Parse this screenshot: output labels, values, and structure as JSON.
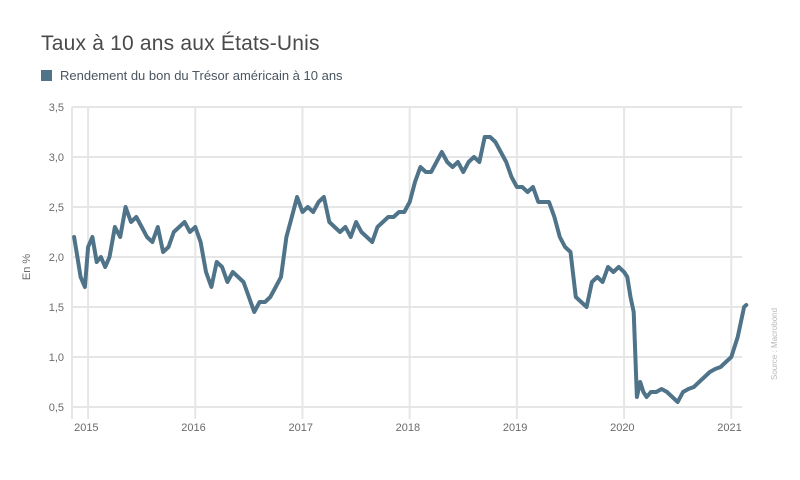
{
  "chart_data": {
    "type": "line",
    "title": "Taux à 10 ans aux États-Unis",
    "ylabel": "En %",
    "xlabel": "",
    "source": "Source : Macrobond",
    "ylim": [
      0.5,
      3.5
    ],
    "xlim": [
      2014.85,
      2021.1
    ],
    "yticks": [
      "0,5",
      "1,0",
      "1,5",
      "2,0",
      "2,5",
      "3,0",
      "3,5"
    ],
    "ytick_values": [
      0.5,
      1.0,
      1.5,
      2.0,
      2.5,
      3.0,
      3.5
    ],
    "xticks": [
      "2015",
      "2016",
      "2017",
      "2018",
      "2019",
      "2020",
      "2021"
    ],
    "xtick_values": [
      2015,
      2016,
      2017,
      2018,
      2019,
      2020,
      2021
    ],
    "grid": true,
    "legend_position": "top-left",
    "color": "#4f7388",
    "series": [
      {
        "name": "Rendement du bon du Trésor américain à 10 ans",
        "x": [
          2014.87,
          2014.9,
          2014.93,
          2014.97,
          2015.0,
          2015.04,
          2015.08,
          2015.12,
          2015.16,
          2015.2,
          2015.25,
          2015.3,
          2015.35,
          2015.4,
          2015.45,
          2015.5,
          2015.55,
          2015.6,
          2015.65,
          2015.7,
          2015.75,
          2015.8,
          2015.85,
          2015.9,
          2015.95,
          2016.0,
          2016.05,
          2016.1,
          2016.15,
          2016.2,
          2016.25,
          2016.3,
          2016.35,
          2016.4,
          2016.45,
          2016.5,
          2016.55,
          2016.6,
          2016.65,
          2016.7,
          2016.75,
          2016.8,
          2016.85,
          2016.9,
          2016.95,
          2017.0,
          2017.05,
          2017.1,
          2017.15,
          2017.2,
          2017.25,
          2017.3,
          2017.35,
          2017.4,
          2017.45,
          2017.5,
          2017.55,
          2017.6,
          2017.65,
          2017.7,
          2017.75,
          2017.8,
          2017.85,
          2017.9,
          2017.95,
          2018.0,
          2018.05,
          2018.1,
          2018.15,
          2018.2,
          2018.25,
          2018.3,
          2018.35,
          2018.4,
          2018.45,
          2018.5,
          2018.55,
          2018.6,
          2018.65,
          2018.7,
          2018.75,
          2018.8,
          2018.85,
          2018.9,
          2018.95,
          2019.0,
          2019.05,
          2019.1,
          2019.15,
          2019.2,
          2019.25,
          2019.3,
          2019.35,
          2019.4,
          2019.45,
          2019.5,
          2019.55,
          2019.6,
          2019.65,
          2019.7,
          2019.75,
          2019.8,
          2019.85,
          2019.9,
          2019.95,
          2020.0,
          2020.03,
          2020.06,
          2020.09,
          2020.12,
          2020.15,
          2020.18,
          2020.21,
          2020.25,
          2020.3,
          2020.35,
          2020.4,
          2020.45,
          2020.5,
          2020.55,
          2020.6,
          2020.65,
          2020.7,
          2020.75,
          2020.8,
          2020.85,
          2020.9,
          2020.95,
          2021.0,
          2021.03,
          2021.06,
          2021.09,
          2021.12,
          2021.14
        ],
        "values": [
          2.2,
          2.0,
          1.8,
          1.7,
          2.1,
          2.2,
          1.95,
          2.0,
          1.9,
          2.0,
          2.3,
          2.2,
          2.5,
          2.35,
          2.4,
          2.3,
          2.2,
          2.15,
          2.3,
          2.05,
          2.1,
          2.25,
          2.3,
          2.35,
          2.25,
          2.3,
          2.15,
          1.85,
          1.7,
          1.95,
          1.9,
          1.75,
          1.85,
          1.8,
          1.75,
          1.6,
          1.45,
          1.55,
          1.55,
          1.6,
          1.7,
          1.8,
          2.2,
          2.4,
          2.6,
          2.45,
          2.5,
          2.45,
          2.55,
          2.6,
          2.35,
          2.3,
          2.25,
          2.3,
          2.2,
          2.35,
          2.25,
          2.2,
          2.15,
          2.3,
          2.35,
          2.4,
          2.4,
          2.45,
          2.45,
          2.55,
          2.75,
          2.9,
          2.85,
          2.85,
          2.95,
          3.05,
          2.95,
          2.9,
          2.95,
          2.85,
          2.95,
          3.0,
          2.95,
          3.2,
          3.2,
          3.15,
          3.05,
          2.95,
          2.8,
          2.7,
          2.7,
          2.65,
          2.7,
          2.55,
          2.55,
          2.55,
          2.4,
          2.2,
          2.1,
          2.05,
          1.6,
          1.55,
          1.5,
          1.75,
          1.8,
          1.75,
          1.9,
          1.85,
          1.9,
          1.85,
          1.8,
          1.6,
          1.45,
          0.6,
          0.75,
          0.65,
          0.6,
          0.65,
          0.65,
          0.68,
          0.65,
          0.6,
          0.55,
          0.65,
          0.68,
          0.7,
          0.75,
          0.8,
          0.85,
          0.88,
          0.9,
          0.95,
          1.0,
          1.1,
          1.2,
          1.35,
          1.5,
          1.52
        ]
      }
    ]
  }
}
